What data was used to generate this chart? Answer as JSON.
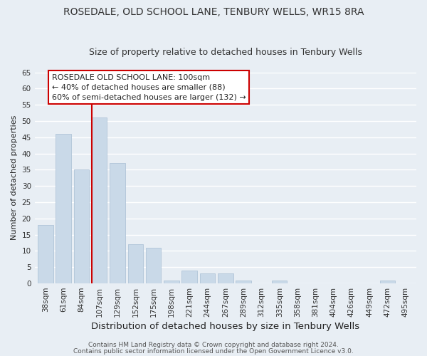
{
  "title": "ROSEDALE, OLD SCHOOL LANE, TENBURY WELLS, WR15 8RA",
  "subtitle": "Size of property relative to detached houses in Tenbury Wells",
  "xlabel": "Distribution of detached houses by size in Tenbury Wells",
  "ylabel": "Number of detached properties",
  "bar_labels": [
    "38sqm",
    "61sqm",
    "84sqm",
    "107sqm",
    "129sqm",
    "152sqm",
    "175sqm",
    "198sqm",
    "221sqm",
    "244sqm",
    "267sqm",
    "289sqm",
    "312sqm",
    "335sqm",
    "358sqm",
    "381sqm",
    "404sqm",
    "426sqm",
    "449sqm",
    "472sqm",
    "495sqm"
  ],
  "bar_values": [
    18,
    46,
    35,
    51,
    37,
    12,
    11,
    1,
    4,
    3,
    3,
    1,
    0,
    1,
    0,
    0,
    0,
    0,
    0,
    1,
    0
  ],
  "bar_color": "#c9d9e8",
  "bar_edge_color": "#b0c4d8",
  "highlight_color": "#cc0000",
  "ylim": [
    0,
    65
  ],
  "yticks": [
    0,
    5,
    10,
    15,
    20,
    25,
    30,
    35,
    40,
    45,
    50,
    55,
    60,
    65
  ],
  "annotation_title": "ROSEDALE OLD SCHOOL LANE: 100sqm",
  "annotation_line1": "← 40% of detached houses are smaller (88)",
  "annotation_line2": "60% of semi-detached houses are larger (132) →",
  "annotation_box_facecolor": "#ffffff",
  "annotation_box_edgecolor": "#cc0000",
  "footer_line1": "Contains HM Land Registry data © Crown copyright and database right 2024.",
  "footer_line2": "Contains public sector information licensed under the Open Government Licence v3.0.",
  "background_color": "#e8eef4",
  "plot_bg_color": "#e8eef4",
  "grid_color": "#ffffff",
  "title_fontsize": 10,
  "subtitle_fontsize": 9,
  "xlabel_fontsize": 9.5,
  "ylabel_fontsize": 8,
  "tick_fontsize": 7.5,
  "annotation_fontsize": 8,
  "footer_fontsize": 6.5
}
